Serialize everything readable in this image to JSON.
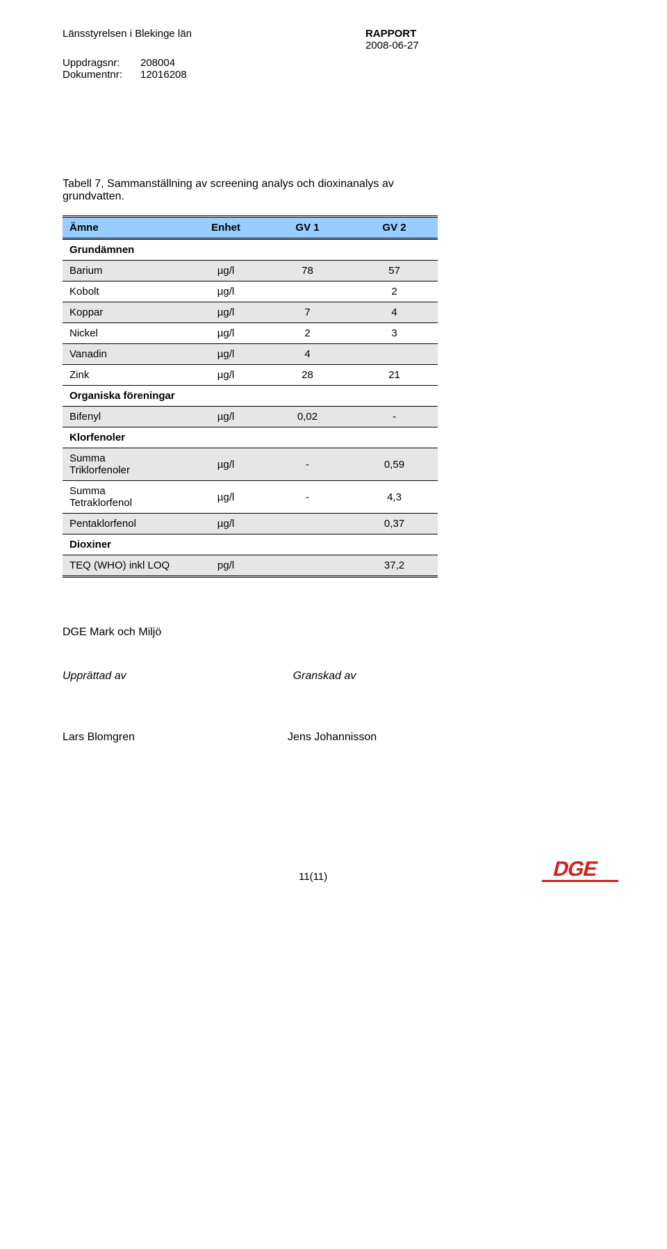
{
  "header": {
    "org": "Länsstyrelsen i Blekinge län",
    "report_label": "RAPPORT",
    "date": "2008-06-27",
    "meta": [
      {
        "label": "Uppdragsnr:",
        "value": "208004"
      },
      {
        "label": "Dokumentnr:",
        "value": "12016208"
      }
    ]
  },
  "caption": "Tabell 7, Sammanställning av screening analys och dioxinanalys av grundvatten.",
  "table": {
    "columns": [
      "Ämne",
      "Enhet",
      "GV 1",
      "GV 2"
    ],
    "header_bg": "#99ccff",
    "shade_bg": "#e6e6e6",
    "sections": [
      {
        "title": "Grundämnen",
        "rows": [
          {
            "amne": "Barium",
            "enhet": "µg/l",
            "gv1": "78",
            "gv2": "57",
            "shade": true
          },
          {
            "amne": "Kobolt",
            "enhet": "µg/l",
            "gv1": "",
            "gv2": "2",
            "shade": false
          },
          {
            "amne": "Koppar",
            "enhet": "µg/l",
            "gv1": "7",
            "gv2": "4",
            "shade": true
          },
          {
            "amne": "Nickel",
            "enhet": "µg/l",
            "gv1": "2",
            "gv2": "3",
            "shade": false
          },
          {
            "amne": "Vanadin",
            "enhet": "µg/l",
            "gv1": "4",
            "gv2": "",
            "shade": true
          },
          {
            "amne": "Zink",
            "enhet": "µg/l",
            "gv1": "28",
            "gv2": "21",
            "shade": false
          }
        ]
      },
      {
        "title": "Organiska föreningar",
        "rows": [
          {
            "amne": "Bifenyl",
            "enhet": "µg/l",
            "gv1": "0,02",
            "gv2": "-",
            "shade": true
          }
        ]
      },
      {
        "title": "Klorfenoler",
        "rows": [
          {
            "amne": "Summa\nTriklorfenoler",
            "enhet": "µg/l",
            "gv1": "-",
            "gv2": "0,59",
            "shade": true
          },
          {
            "amne": "Summa\nTetraklorfenol",
            "enhet": "µg/l",
            "gv1": "-",
            "gv2": "4,3",
            "shade": false
          },
          {
            "amne": "Pentaklorfenol",
            "enhet": "µg/l",
            "gv1": "",
            "gv2": "0,37",
            "shade": true
          }
        ]
      },
      {
        "title": "Dioxiner",
        "rows": [
          {
            "amne": "TEQ (WHO) inkl LOQ",
            "enhet": "pg/l",
            "gv1": "",
            "gv2": "37,2",
            "shade": true
          }
        ]
      }
    ]
  },
  "signoff": {
    "company": "DGE Mark och Miljö",
    "prepared_label": "Upprättad av",
    "reviewed_label": "Granskad av",
    "prepared_name": "Lars Blomgren",
    "reviewed_name": "Jens Johannisson"
  },
  "footer": {
    "page": "11(11)",
    "logo_text": "DGE",
    "logo_color": "#d41f1f"
  }
}
